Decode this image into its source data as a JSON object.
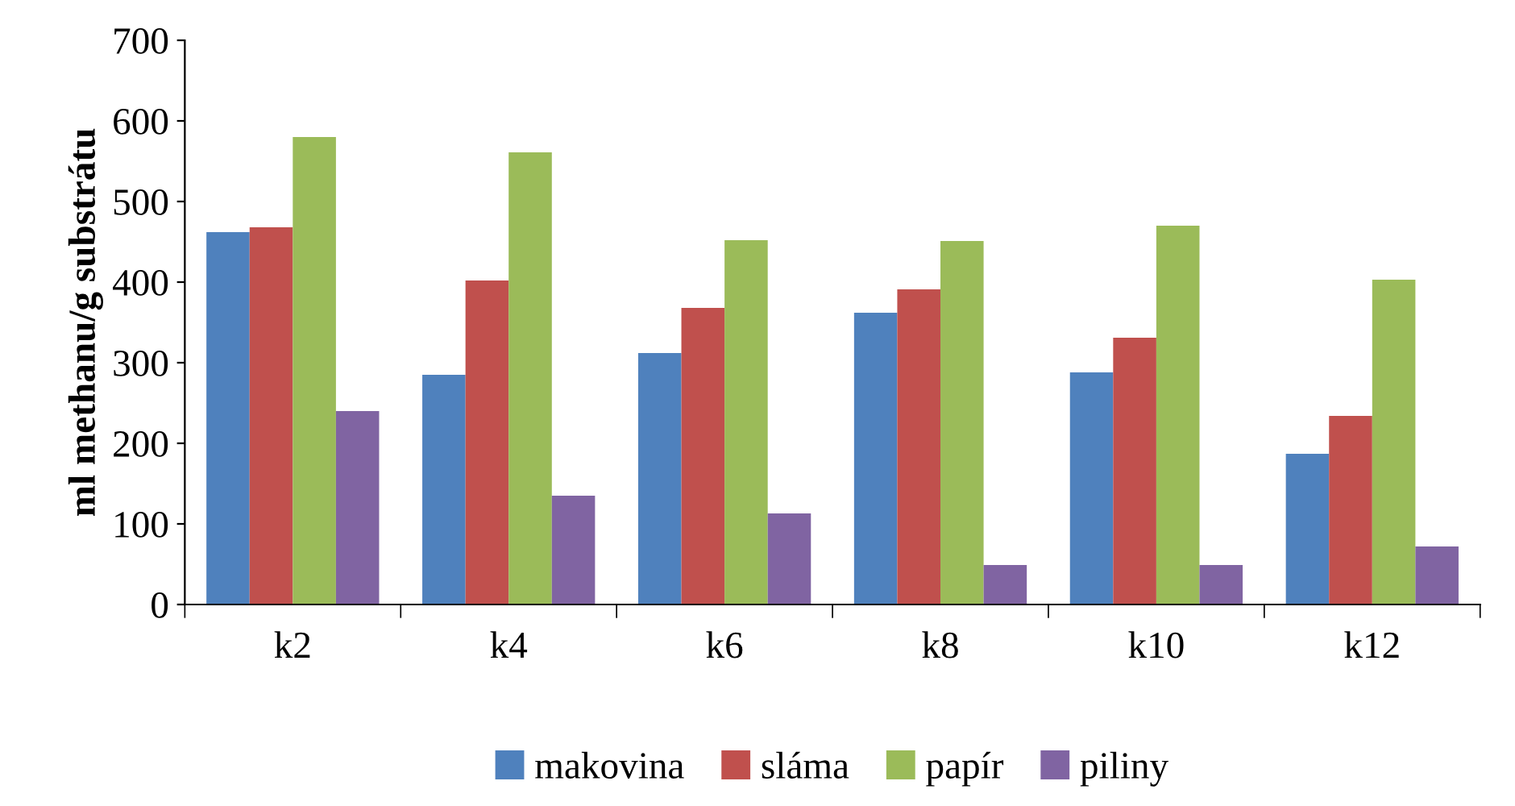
{
  "chart_data": {
    "type": "bar",
    "ylabel": "ml methanu/g substrátu",
    "categories": [
      "k2",
      "k4",
      "k6",
      "k8",
      "k10",
      "k12"
    ],
    "series": [
      {
        "name": "makovina",
        "color": "#4f81bd",
        "values": [
          462,
          285,
          312,
          362,
          288,
          187
        ]
      },
      {
        "name": "sláma",
        "color": "#c0504d",
        "values": [
          468,
          402,
          368,
          391,
          331,
          234
        ]
      },
      {
        "name": "papír",
        "color": "#9bbb59",
        "values": [
          580,
          561,
          452,
          451,
          470,
          403
        ]
      },
      {
        "name": "piliny",
        "color": "#8064a2",
        "values": [
          240,
          135,
          113,
          49,
          49,
          72
        ]
      }
    ],
    "ylim": [
      0,
      700
    ],
    "yticks": [
      0,
      100,
      200,
      300,
      400,
      500,
      600,
      700
    ],
    "grid": false,
    "legend": "bottom"
  }
}
